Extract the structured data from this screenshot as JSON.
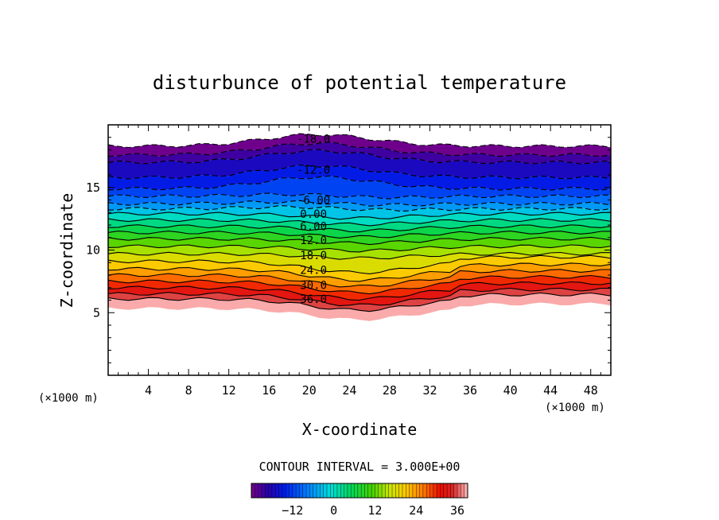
{
  "chart_data": {
    "type": "contour",
    "title": "disturbunce of potential temperature",
    "xlabel": "X-coordinate",
    "ylabel": "Z-coordinate",
    "x_unit_label": "(×1000 m)",
    "y_unit_label": "(×1000 m)",
    "xlim": [
      0,
      50
    ],
    "ylim": [
      0,
      20
    ],
    "x_ticks": [
      4,
      8,
      12,
      16,
      20,
      24,
      28,
      32,
      36,
      40,
      44,
      48
    ],
    "y_ticks": [
      5,
      10,
      15
    ],
    "contour_interval_text": "CONTOUR INTERVAL = 3.000E+00",
    "value_range": [
      -24,
      39
    ],
    "contour_labels": [
      {
        "text": "-18.0",
        "x": 19,
        "z": 18.9
      },
      {
        "text": "-12.0",
        "x": 19,
        "z": 16.4
      },
      {
        "text": "-6.00",
        "x": 19,
        "z": 14.0
      },
      {
        "text": "0.00",
        "x": 19,
        "z": 12.9
      },
      {
        "text": "6.00",
        "x": 19,
        "z": 11.9
      },
      {
        "text": "12.0",
        "x": 19,
        "z": 10.8
      },
      {
        "text": "18.0",
        "x": 19,
        "z": 9.6
      },
      {
        "text": "24.0",
        "x": 19,
        "z": 8.4
      },
      {
        "text": "30.0",
        "x": 19,
        "z": 7.2
      },
      {
        "text": "36.0",
        "x": 19,
        "z": 6.1
      }
    ],
    "colorbar": {
      "min": -24,
      "max": 39,
      "tick_values": [
        -12,
        0,
        12,
        24,
        36
      ],
      "tick_labels": [
        "−12",
        "0",
        "12",
        "24",
        "36"
      ]
    }
  }
}
